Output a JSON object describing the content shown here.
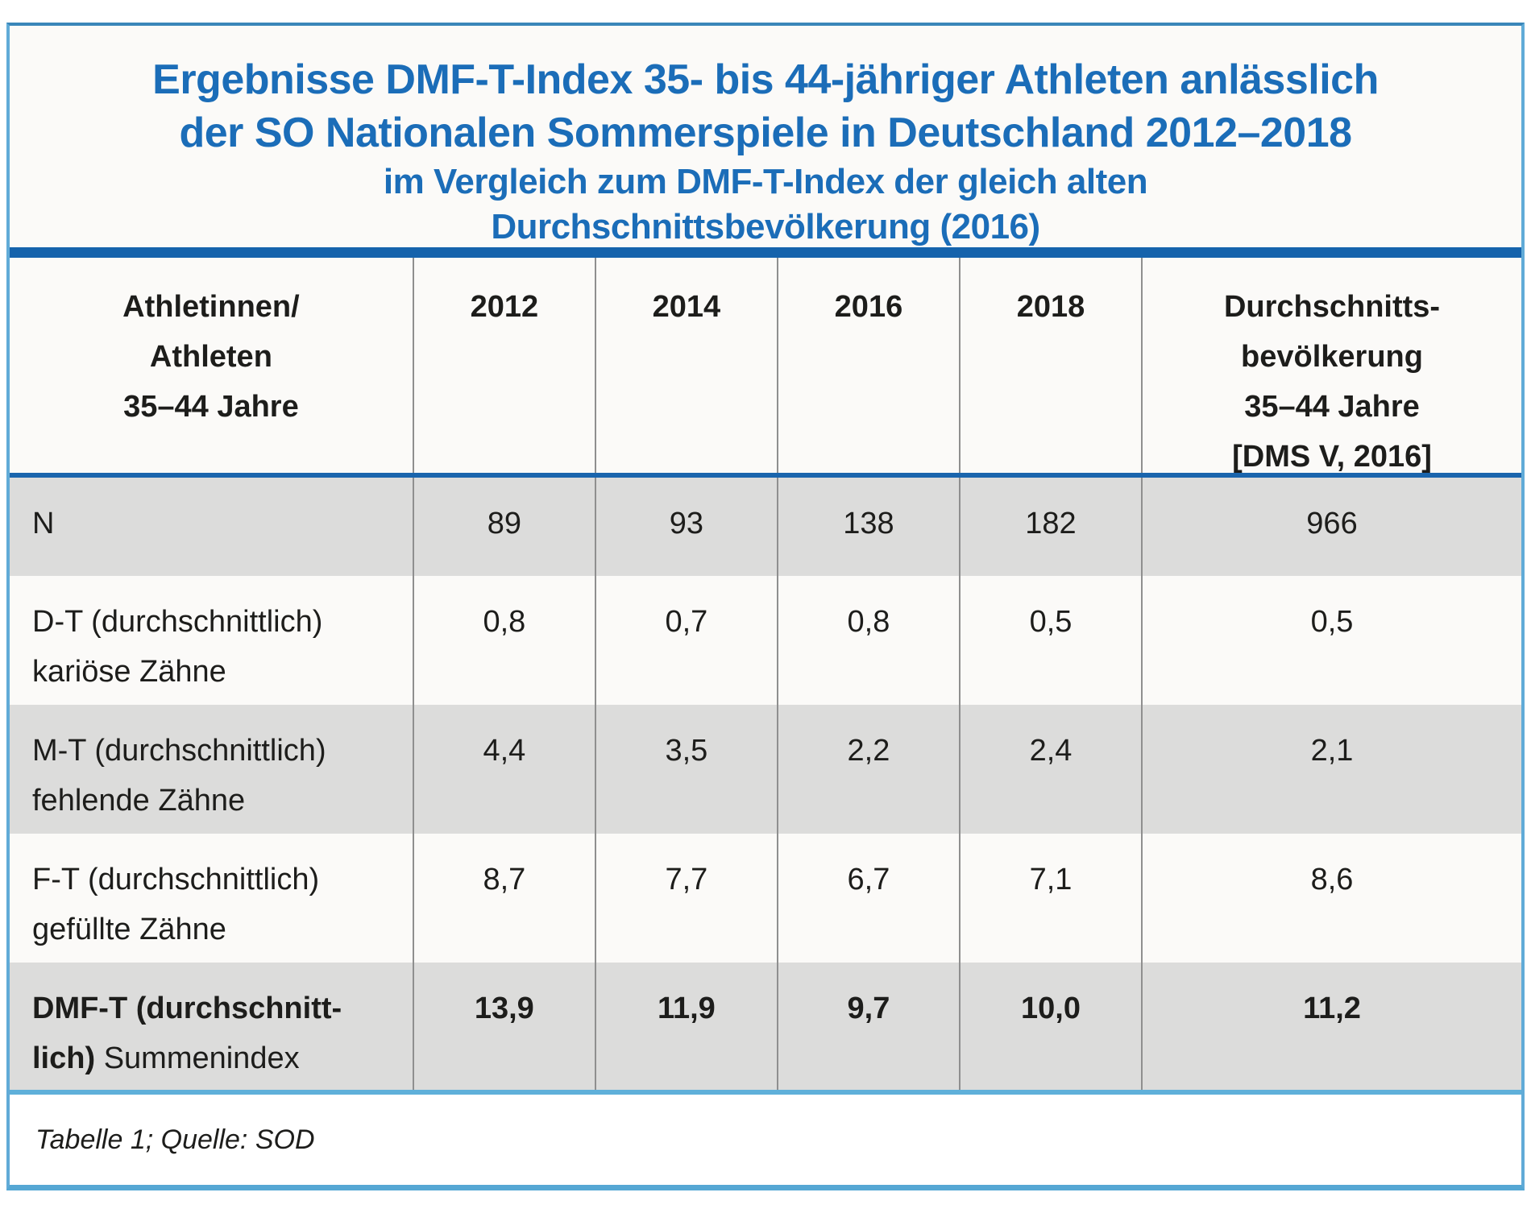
{
  "title": {
    "line1": "Ergebnisse DMF-T-Index 35- bis 44-jähriger Athleten anlässlich",
    "line2": "der SO Nationalen Sommerspiele in Deutschland 2012–2018",
    "line3": "im Vergleich zum DMF-T-Index der gleich alten",
    "line4": "Durchschnittsbevölkerung (2016)"
  },
  "table": {
    "header": {
      "col0_lines": [
        "Athletinnen/",
        "Athleten",
        "35–44 Jahre"
      ],
      "years": [
        "2012",
        "2014",
        "2016",
        "2018"
      ],
      "last_lines": [
        "Durchschnitts-",
        "bevölkerung",
        "35–44 Jahre",
        "[DMS V, 2016]"
      ]
    },
    "rows": [
      {
        "label_main": "N",
        "label_sub": "",
        "values": [
          "89",
          "93",
          "138",
          "182",
          "966"
        ]
      },
      {
        "label_main": "D-T (durchschnittlich)",
        "label_sub": "kariöse Zähne",
        "values": [
          "0,8",
          "0,7",
          "0,8",
          "0,5",
          "0,5"
        ]
      },
      {
        "label_main": "M-T (durchschnittlich)",
        "label_sub": "fehlende Zähne",
        "values": [
          "4,4",
          "3,5",
          "2,2",
          "2,4",
          "2,1"
        ]
      },
      {
        "label_main": "F-T (durchschnittlich)",
        "label_sub": "gefüllte Zähne",
        "values": [
          "8,7",
          "7,7",
          "6,7",
          "7,1",
          "8,6"
        ]
      },
      {
        "label_bold1": "DMF-T (durchschnitt-",
        "label_bold2": "lich)",
        "label_regular": "Summenindex",
        "values": [
          "13,9",
          "11,9",
          "9,7",
          "10,0",
          "11,2"
        ]
      }
    ],
    "caption": "Tabelle 1; Quelle: SOD"
  },
  "colors": {
    "title_text": "#1b6db8",
    "heavy_bar": "#1563ac",
    "header_rule": "#1a65ad",
    "outer_border_light": "#61abd7",
    "outer_border_top": "#3a86b9",
    "footer_rule": "#5fb0da",
    "row_gray": "#dcdcdb",
    "row_light": "#fbfaf8",
    "column_rule": "#8f8f8f",
    "body_text": "#1d1d1b"
  },
  "chart_data": {
    "type": "table",
    "title": "Ergebnisse DMF-T-Index 35- bis 44-jähriger Athleten anlässlich der SO Nationalen Sommerspiele in Deutschland 2012–2018 im Vergleich zum DMF-T-Index der gleich alten Durchschnittsbevölkerung (2016)",
    "columns": [
      "Athletinnen/Athleten 35–44 Jahre",
      "2012",
      "2014",
      "2016",
      "2018",
      "Durchschnittsbevölkerung 35–44 Jahre [DMS V, 2016]"
    ],
    "rows": [
      [
        "N",
        89,
        93,
        138,
        182,
        966
      ],
      [
        "D-T (durchschnittlich) kariöse Zähne",
        0.8,
        0.7,
        0.8,
        0.5,
        0.5
      ],
      [
        "M-T (durchschnittlich) fehlende Zähne",
        4.4,
        3.5,
        2.2,
        2.4,
        2.1
      ],
      [
        "F-T (durchschnittlich) gefüllte Zähne",
        8.7,
        7.7,
        6.7,
        7.1,
        8.6
      ],
      [
        "DMF-T (durchschnittlich) Summenindex",
        13.9,
        11.9,
        9.7,
        10.0,
        11.2
      ]
    ],
    "caption": "Tabelle 1; Quelle: SOD"
  }
}
